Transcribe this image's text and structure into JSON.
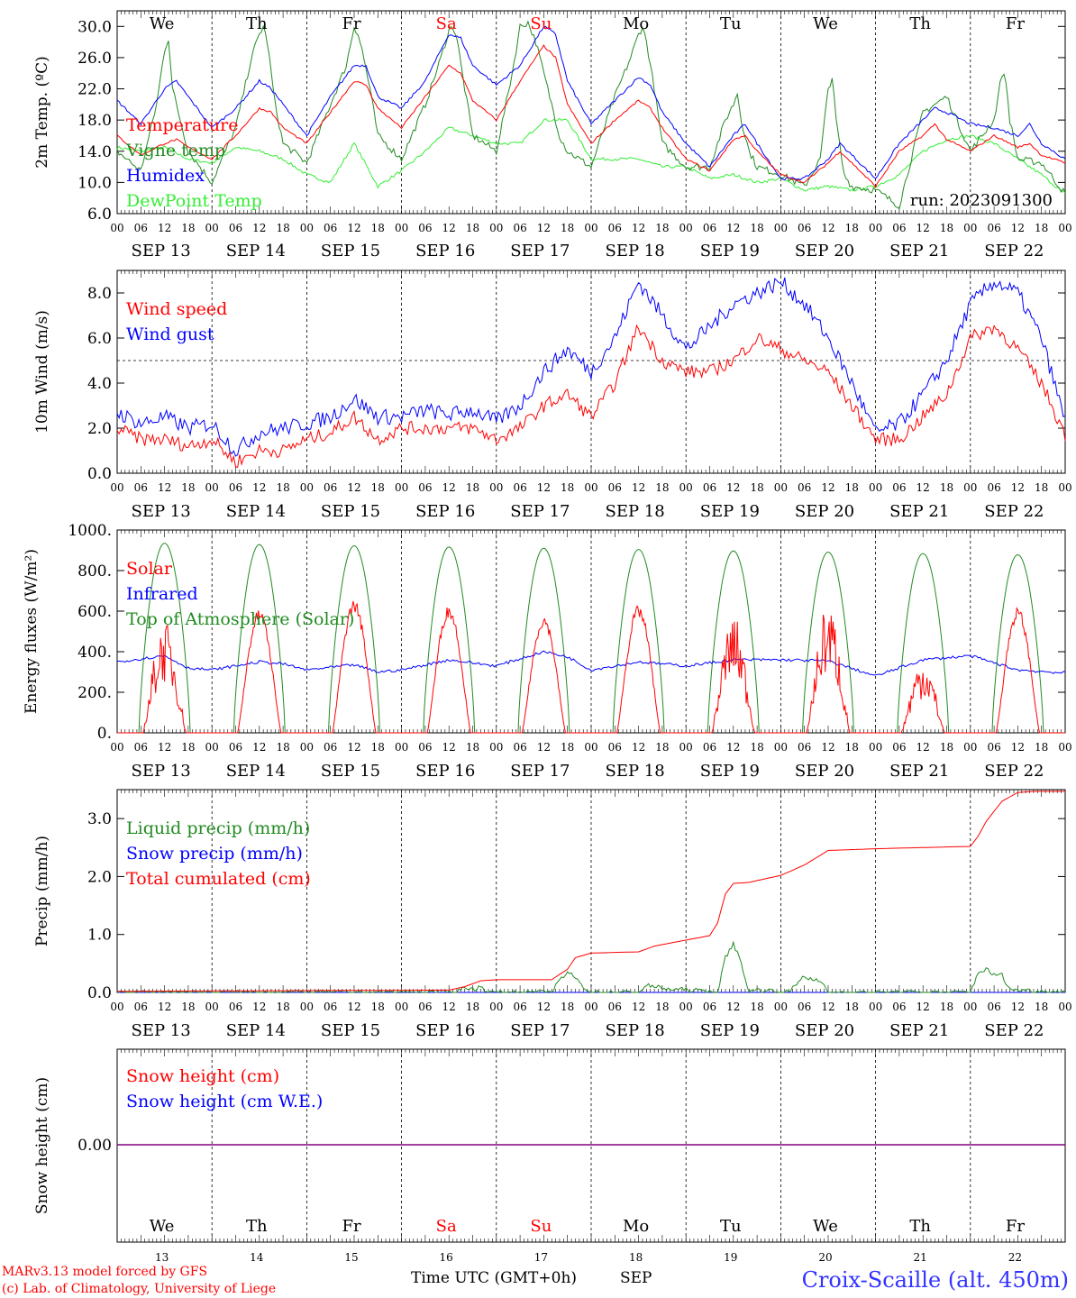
{
  "colors": {
    "red": "#ff0000",
    "dark_green": "#228b22",
    "blue": "#0000ff",
    "light_green": "#33ee33",
    "purple": "#800080"
  },
  "days": [
    "We",
    "Th",
    "Fr",
    "Sa",
    "Su",
    "Mo",
    "Tu",
    "We",
    "Th",
    "Fr"
  ],
  "weekend_days": [
    3,
    4
  ],
  "dates": [
    "SEP 13",
    "SEP 14",
    "SEP 15",
    "SEP 16",
    "SEP 17",
    "SEP 18",
    "SEP 19",
    "SEP 20",
    "SEP 21",
    "SEP 22"
  ],
  "date_numbers": [
    "13",
    "14",
    "15",
    "16",
    "17",
    "18",
    "19",
    "20",
    "21",
    "22"
  ],
  "hour_labels": [
    "00",
    "06",
    "12",
    "18"
  ],
  "last_hour_label": "00",
  "footer": {
    "credit_1": "MARv3.13 model forced by GFS",
    "credit_2": "(c) Lab. of Climatology, University of Liege",
    "xlabel": "Time UTC (GMT+0h)",
    "month": "SEP",
    "station": "Croix-Scaille (alt. 450m)"
  },
  "chart_data": [
    {
      "type": "line",
      "ylabel": "2m Temp. (ºC)",
      "ylim": [
        6,
        32
      ],
      "yticks": [
        "6.0",
        "10.0",
        "14.0",
        "18.0",
        "22.0",
        "26.0",
        "30.0"
      ],
      "run_label": "run: 2023091300",
      "x_unit": "hours since 2023-09-13 00 UTC",
      "series": [
        {
          "name": "Temperature",
          "color": "#ff0000",
          "x": [
            0,
            6,
            12,
            15,
            18,
            24,
            30,
            36,
            39,
            42,
            48,
            54,
            60,
            63,
            66,
            72,
            78,
            84,
            87,
            90,
            96,
            102,
            108,
            111,
            114,
            120,
            126,
            132,
            135,
            138,
            144,
            150,
            156,
            159,
            162,
            168,
            174,
            180,
            183,
            186,
            192,
            198,
            204,
            207,
            210,
            216,
            222,
            228,
            231,
            234,
            240
          ],
          "y": [
            16,
            13.5,
            15,
            15.5,
            14.5,
            13,
            16,
            19.5,
            19,
            17,
            15,
            19,
            23,
            22.5,
            19.5,
            17,
            21,
            25,
            24,
            20.5,
            18,
            23,
            27.5,
            26,
            20,
            15,
            18,
            20.5,
            19.5,
            17,
            13,
            11.5,
            15.5,
            16,
            14,
            11,
            10,
            12.5,
            14,
            12.5,
            9.5,
            14,
            16,
            17.5,
            15.5,
            14,
            16,
            14.5,
            15,
            13.5,
            12.5
          ]
        },
        {
          "name": "Vigne temp",
          "color": "#228b22",
          "x": [
            0,
            6,
            10,
            12,
            13,
            14,
            16,
            18,
            24,
            30,
            34,
            36,
            37,
            38,
            40,
            42,
            48,
            54,
            58,
            60,
            61,
            62,
            64,
            66,
            72,
            78,
            82,
            84,
            85,
            86,
            88,
            90,
            96,
            100,
            102,
            104,
            106,
            108,
            112,
            114,
            120,
            126,
            130,
            132,
            133,
            134,
            136,
            138,
            144,
            150,
            154,
            156,
            157,
            158,
            160,
            162,
            168,
            174,
            178,
            180,
            181,
            182,
            184,
            186,
            192,
            198,
            204,
            210,
            216,
            222,
            224,
            225,
            226,
            228,
            234,
            240
          ],
          "y": [
            14,
            11.5,
            20,
            27,
            28.5,
            22,
            18,
            14,
            10,
            17,
            26,
            29,
            30,
            28,
            20,
            15,
            12.5,
            20,
            25,
            30,
            29,
            27,
            22,
            16,
            13,
            20,
            26,
            29.5,
            30,
            28.5,
            22,
            16,
            14,
            24,
            30,
            30.5,
            28,
            24,
            16,
            14,
            12,
            21,
            26,
            29,
            30,
            28,
            22,
            15,
            12,
            12,
            18,
            20,
            21.5,
            18,
            14,
            12,
            11,
            9.5,
            13,
            22,
            23.5,
            18,
            11,
            9.5,
            9,
            7,
            19,
            21,
            14,
            18,
            24,
            23,
            18,
            13,
            12.5,
            8.5
          ]
        },
        {
          "name": "Humidex",
          "color": "#0000ff",
          "x": [
            0,
            6,
            12,
            15,
            18,
            24,
            30,
            36,
            39,
            42,
            48,
            54,
            60,
            63,
            66,
            72,
            78,
            84,
            87,
            90,
            96,
            102,
            108,
            111,
            114,
            120,
            126,
            132,
            135,
            138,
            144,
            150,
            156,
            159,
            162,
            168,
            174,
            180,
            183,
            186,
            192,
            198,
            204,
            207,
            210,
            216,
            222,
            228,
            231,
            234,
            240
          ],
          "y": [
            20.5,
            17.5,
            22,
            23,
            21,
            17,
            19.5,
            23,
            22,
            20,
            16,
            21,
            25,
            25,
            21,
            19.5,
            23,
            29,
            28.5,
            25,
            22.5,
            25,
            30,
            29,
            23,
            17.5,
            20.5,
            23.5,
            22.5,
            19,
            15,
            12,
            16,
            17.5,
            15,
            10.5,
            10.5,
            13,
            15,
            13.5,
            10.5,
            15,
            18,
            19.5,
            19,
            17.5,
            17,
            16,
            17.5,
            15,
            13
          ]
        },
        {
          "name": "DewPoint Temp",
          "color": "#33ee33",
          "x": [
            0,
            6,
            12,
            18,
            24,
            30,
            36,
            42,
            48,
            54,
            60,
            66,
            72,
            78,
            84,
            90,
            96,
            102,
            108,
            114,
            120,
            126,
            132,
            138,
            144,
            150,
            156,
            162,
            168,
            174,
            180,
            186,
            192,
            198,
            204,
            210,
            216,
            222,
            228,
            234,
            240
          ],
          "y": [
            14.5,
            14,
            14.5,
            13,
            12.5,
            14.5,
            14,
            13,
            11,
            10,
            15,
            9.5,
            11.5,
            14,
            17,
            16,
            15,
            15,
            18,
            18,
            13,
            13,
            13,
            12,
            12,
            10.5,
            11,
            10,
            10.5,
            9,
            9.5,
            9,
            9.5,
            11,
            14,
            15.5,
            16,
            15,
            13,
            11,
            8.5
          ]
        }
      ]
    },
    {
      "type": "line",
      "ylabel": "10m Wind (m/s)",
      "ylim": [
        0,
        9
      ],
      "yticks": [
        "0.0",
        "2.0",
        "4.0",
        "6.0",
        "8.0"
      ],
      "reference_line": 5,
      "x_unit": "hours since 2023-09-13 00 UTC",
      "series": [
        {
          "name": "Wind speed",
          "color": "#ff0000",
          "x": [
            0,
            6,
            12,
            18,
            24,
            30,
            36,
            42,
            48,
            54,
            60,
            66,
            72,
            78,
            84,
            90,
            96,
            102,
            108,
            114,
            120,
            126,
            132,
            138,
            144,
            150,
            156,
            162,
            168,
            174,
            180,
            186,
            192,
            198,
            204,
            210,
            216,
            222,
            228,
            234,
            240
          ],
          "y": [
            2,
            1.5,
            1.5,
            1.2,
            1.5,
            0.5,
            1,
            1,
            1.5,
            1.8,
            2.5,
            1.5,
            2,
            2,
            2,
            2,
            1.5,
            2,
            3,
            3.5,
            2.5,
            4,
            6.5,
            5,
            4.5,
            4.5,
            5,
            6,
            5.5,
            5,
            4.5,
            3,
            1.5,
            1.5,
            2.5,
            3.5,
            6,
            6.5,
            5.5,
            4,
            1.7
          ]
        },
        {
          "name": "Wind gust",
          "color": "#0000ff",
          "x": [
            0,
            6,
            12,
            18,
            24,
            30,
            36,
            42,
            48,
            54,
            60,
            66,
            72,
            78,
            84,
            90,
            96,
            102,
            108,
            114,
            120,
            126,
            132,
            138,
            144,
            150,
            156,
            162,
            168,
            174,
            180,
            186,
            192,
            198,
            204,
            210,
            216,
            222,
            228,
            234,
            240
          ],
          "y": [
            2.7,
            2.2,
            2.5,
            2,
            2.2,
            1,
            1.8,
            2,
            2.2,
            2.5,
            3.3,
            2.5,
            2.5,
            2.8,
            2.6,
            2.8,
            2.3,
            3,
            4.5,
            5.5,
            4.5,
            6,
            8.5,
            7,
            5.5,
            6.5,
            7.5,
            8,
            8.5,
            7.5,
            6,
            4,
            1.8,
            2.2,
            3.5,
            5,
            7.5,
            8.5,
            8,
            6,
            2.3
          ]
        }
      ]
    },
    {
      "type": "line",
      "ylabel": "Energy fluxes (W/m²)",
      "ylim": [
        0,
        1000
      ],
      "yticks": [
        "0.",
        "200.",
        "400.",
        "600.",
        "800.",
        "1000."
      ],
      "x_unit": "hours since 2023-09-13 00 UTC",
      "series": [
        {
          "name": "Solar",
          "color": "#ff0000",
          "daily_peaks": [
            550,
            610,
            660,
            630,
            580,
            630,
            580,
            640,
            370,
            620
          ]
        },
        {
          "name": "Infrared",
          "color": "#0000ff",
          "x": [
            0,
            12,
            18,
            24,
            36,
            42,
            48,
            60,
            66,
            72,
            84,
            96,
            108,
            114,
            120,
            126,
            132,
            144,
            156,
            168,
            180,
            192,
            204,
            216,
            228,
            240
          ],
          "y": [
            350,
            380,
            320,
            310,
            350,
            340,
            310,
            335,
            300,
            310,
            360,
            330,
            400,
            375,
            310,
            330,
            350,
            330,
            360,
            360,
            355,
            280,
            360,
            380,
            310,
            295
          ]
        },
        {
          "name": "Top of Atmosphere (Solar)",
          "color": "#228b22",
          "daily_peaks": [
            935,
            928,
            922,
            916,
            910,
            904,
            897,
            891,
            884,
            878
          ]
        }
      ]
    },
    {
      "type": "line",
      "ylabel": "Precip (mm/h)",
      "ylim": [
        0,
        3.5
      ],
      "yticks": [
        "0.0",
        "1.0",
        "2.0",
        "3.0"
      ],
      "x_unit": "hours since 2023-09-13 00 UTC",
      "series": [
        {
          "name": "Liquid precip (mm/h)",
          "color": "#228b22",
          "x": [
            0,
            86,
            88,
            90,
            92,
            94,
            96,
            110,
            112,
            114,
            116,
            118,
            120,
            132,
            134,
            136,
            140,
            144,
            152,
            154,
            156,
            158,
            160,
            162,
            170,
            174,
            176,
            178,
            180,
            216,
            218,
            220,
            222,
            224,
            226,
            240
          ],
          "y": [
            0,
            0,
            0.1,
            0.05,
            0.1,
            0,
            0,
            0,
            0.2,
            0.35,
            0.25,
            0.1,
            0,
            0,
            0.12,
            0.1,
            0.05,
            0.05,
            0,
            0.6,
            0.85,
            0.5,
            0,
            0.05,
            0,
            0.3,
            0.2,
            0.2,
            0,
            0,
            0.35,
            0.4,
            0.3,
            0.3,
            0.05,
            0
          ]
        },
        {
          "name": "Snow precip (mm/h)",
          "color": "#0000ff",
          "x": [
            0,
            240
          ],
          "y": [
            0,
            0
          ]
        },
        {
          "name": "Total cumulated (cm)",
          "color": "#ff0000",
          "x": [
            0,
            84,
            88,
            92,
            96,
            110,
            114,
            116,
            120,
            132,
            136,
            150,
            152,
            154,
            156,
            160,
            168,
            174,
            180,
            192,
            204,
            216,
            218,
            220,
            224,
            228,
            232,
            240
          ],
          "y": [
            0.02,
            0.04,
            0.1,
            0.2,
            0.22,
            0.22,
            0.4,
            0.6,
            0.68,
            0.7,
            0.8,
            0.98,
            1.2,
            1.7,
            1.88,
            1.9,
            2.02,
            2.2,
            2.45,
            2.48,
            2.5,
            2.52,
            2.7,
            2.95,
            3.3,
            3.45,
            3.47,
            3.47
          ]
        }
      ]
    },
    {
      "type": "line",
      "ylabel": "Snow height (cm)",
      "ylim": [
        -1,
        1
      ],
      "yticks": [
        "0.00"
      ],
      "x_unit": "hours since 2023-09-13 00 UTC",
      "series": [
        {
          "name": "Snow height (cm)",
          "color": "#ff0000",
          "x": [
            0,
            240
          ],
          "y": [
            0,
            0
          ]
        },
        {
          "name": "Snow height (cm W.E.)",
          "color": "#0000ff",
          "x": [
            0,
            240
          ],
          "y": [
            0,
            0
          ]
        }
      ]
    }
  ]
}
